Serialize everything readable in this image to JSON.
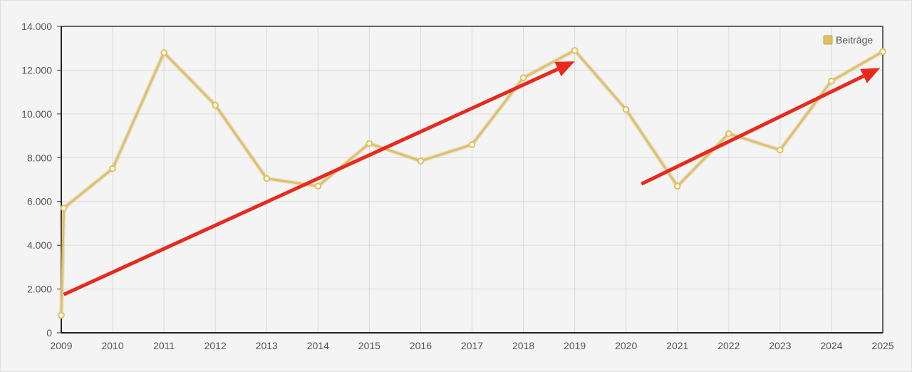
{
  "chart_data": {
    "type": "line",
    "title": "",
    "xlabel": "",
    "ylabel": "",
    "x": [
      2009.0,
      2009.05,
      2010,
      2011,
      2012,
      2013,
      2014,
      2015,
      2016,
      2017,
      2018,
      2019,
      2020,
      2021,
      2022,
      2023,
      2024,
      2025
    ],
    "x_ticks": [
      "2009",
      "2010",
      "2011",
      "2012",
      "2013",
      "2014",
      "2015",
      "2016",
      "2017",
      "2018",
      "2019",
      "2020",
      "2021",
      "2022",
      "2023",
      "2024",
      "2025"
    ],
    "y_ticks": [
      "0",
      "2.000",
      "4.000",
      "6.000",
      "8.000",
      "10.000",
      "12.000",
      "14.000"
    ],
    "xlim": [
      2009,
      2025
    ],
    "ylim": [
      0,
      14000
    ],
    "grid": true,
    "legend_position": "top-right",
    "series": [
      {
        "name": "Beiträge",
        "color": "#e0c060",
        "values": [
          800,
          5700,
          7500,
          12800,
          10400,
          7050,
          6700,
          8650,
          7850,
          8600,
          11650,
          12900,
          10200,
          6700,
          9100,
          8350,
          11500,
          12850
        ]
      }
    ],
    "annotations": [
      {
        "type": "arrow",
        "color": "#e8291c",
        "from": [
          2009.05,
          1750
        ],
        "to": [
          2019.0,
          12400
        ]
      },
      {
        "type": "arrow",
        "color": "#e8291c",
        "from": [
          2020.3,
          6800
        ],
        "to": [
          2024.95,
          12100
        ]
      }
    ]
  }
}
